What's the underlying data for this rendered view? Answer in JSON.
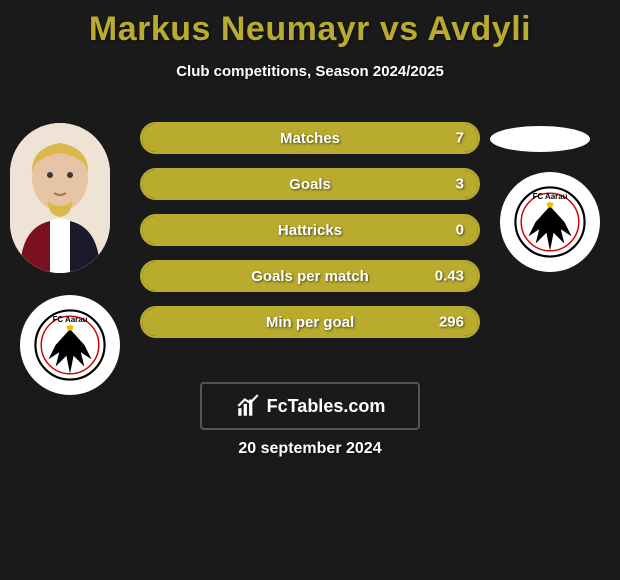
{
  "title_color": "#b9ab2e",
  "title": "Markus Neumayr vs Avdyli",
  "subtitle": "Club competitions, Season 2024/2025",
  "date": "20 september 2024",
  "brand": "FcTables.com",
  "bar_border_color": "#b9ab2e",
  "bar_fill_color": "#b9ab2e",
  "text_color": "#ffffff",
  "background_color": "#1a1a1a",
  "bars": [
    {
      "label": "Matches",
      "value": "7",
      "fill_pct": 100
    },
    {
      "label": "Goals",
      "value": "3",
      "fill_pct": 100
    },
    {
      "label": "Hattricks",
      "value": "0",
      "fill_pct": 100
    },
    {
      "label": "Goals per match",
      "value": "0.43",
      "fill_pct": 100
    },
    {
      "label": "Min per goal",
      "value": "296",
      "fill_pct": 100
    }
  ]
}
